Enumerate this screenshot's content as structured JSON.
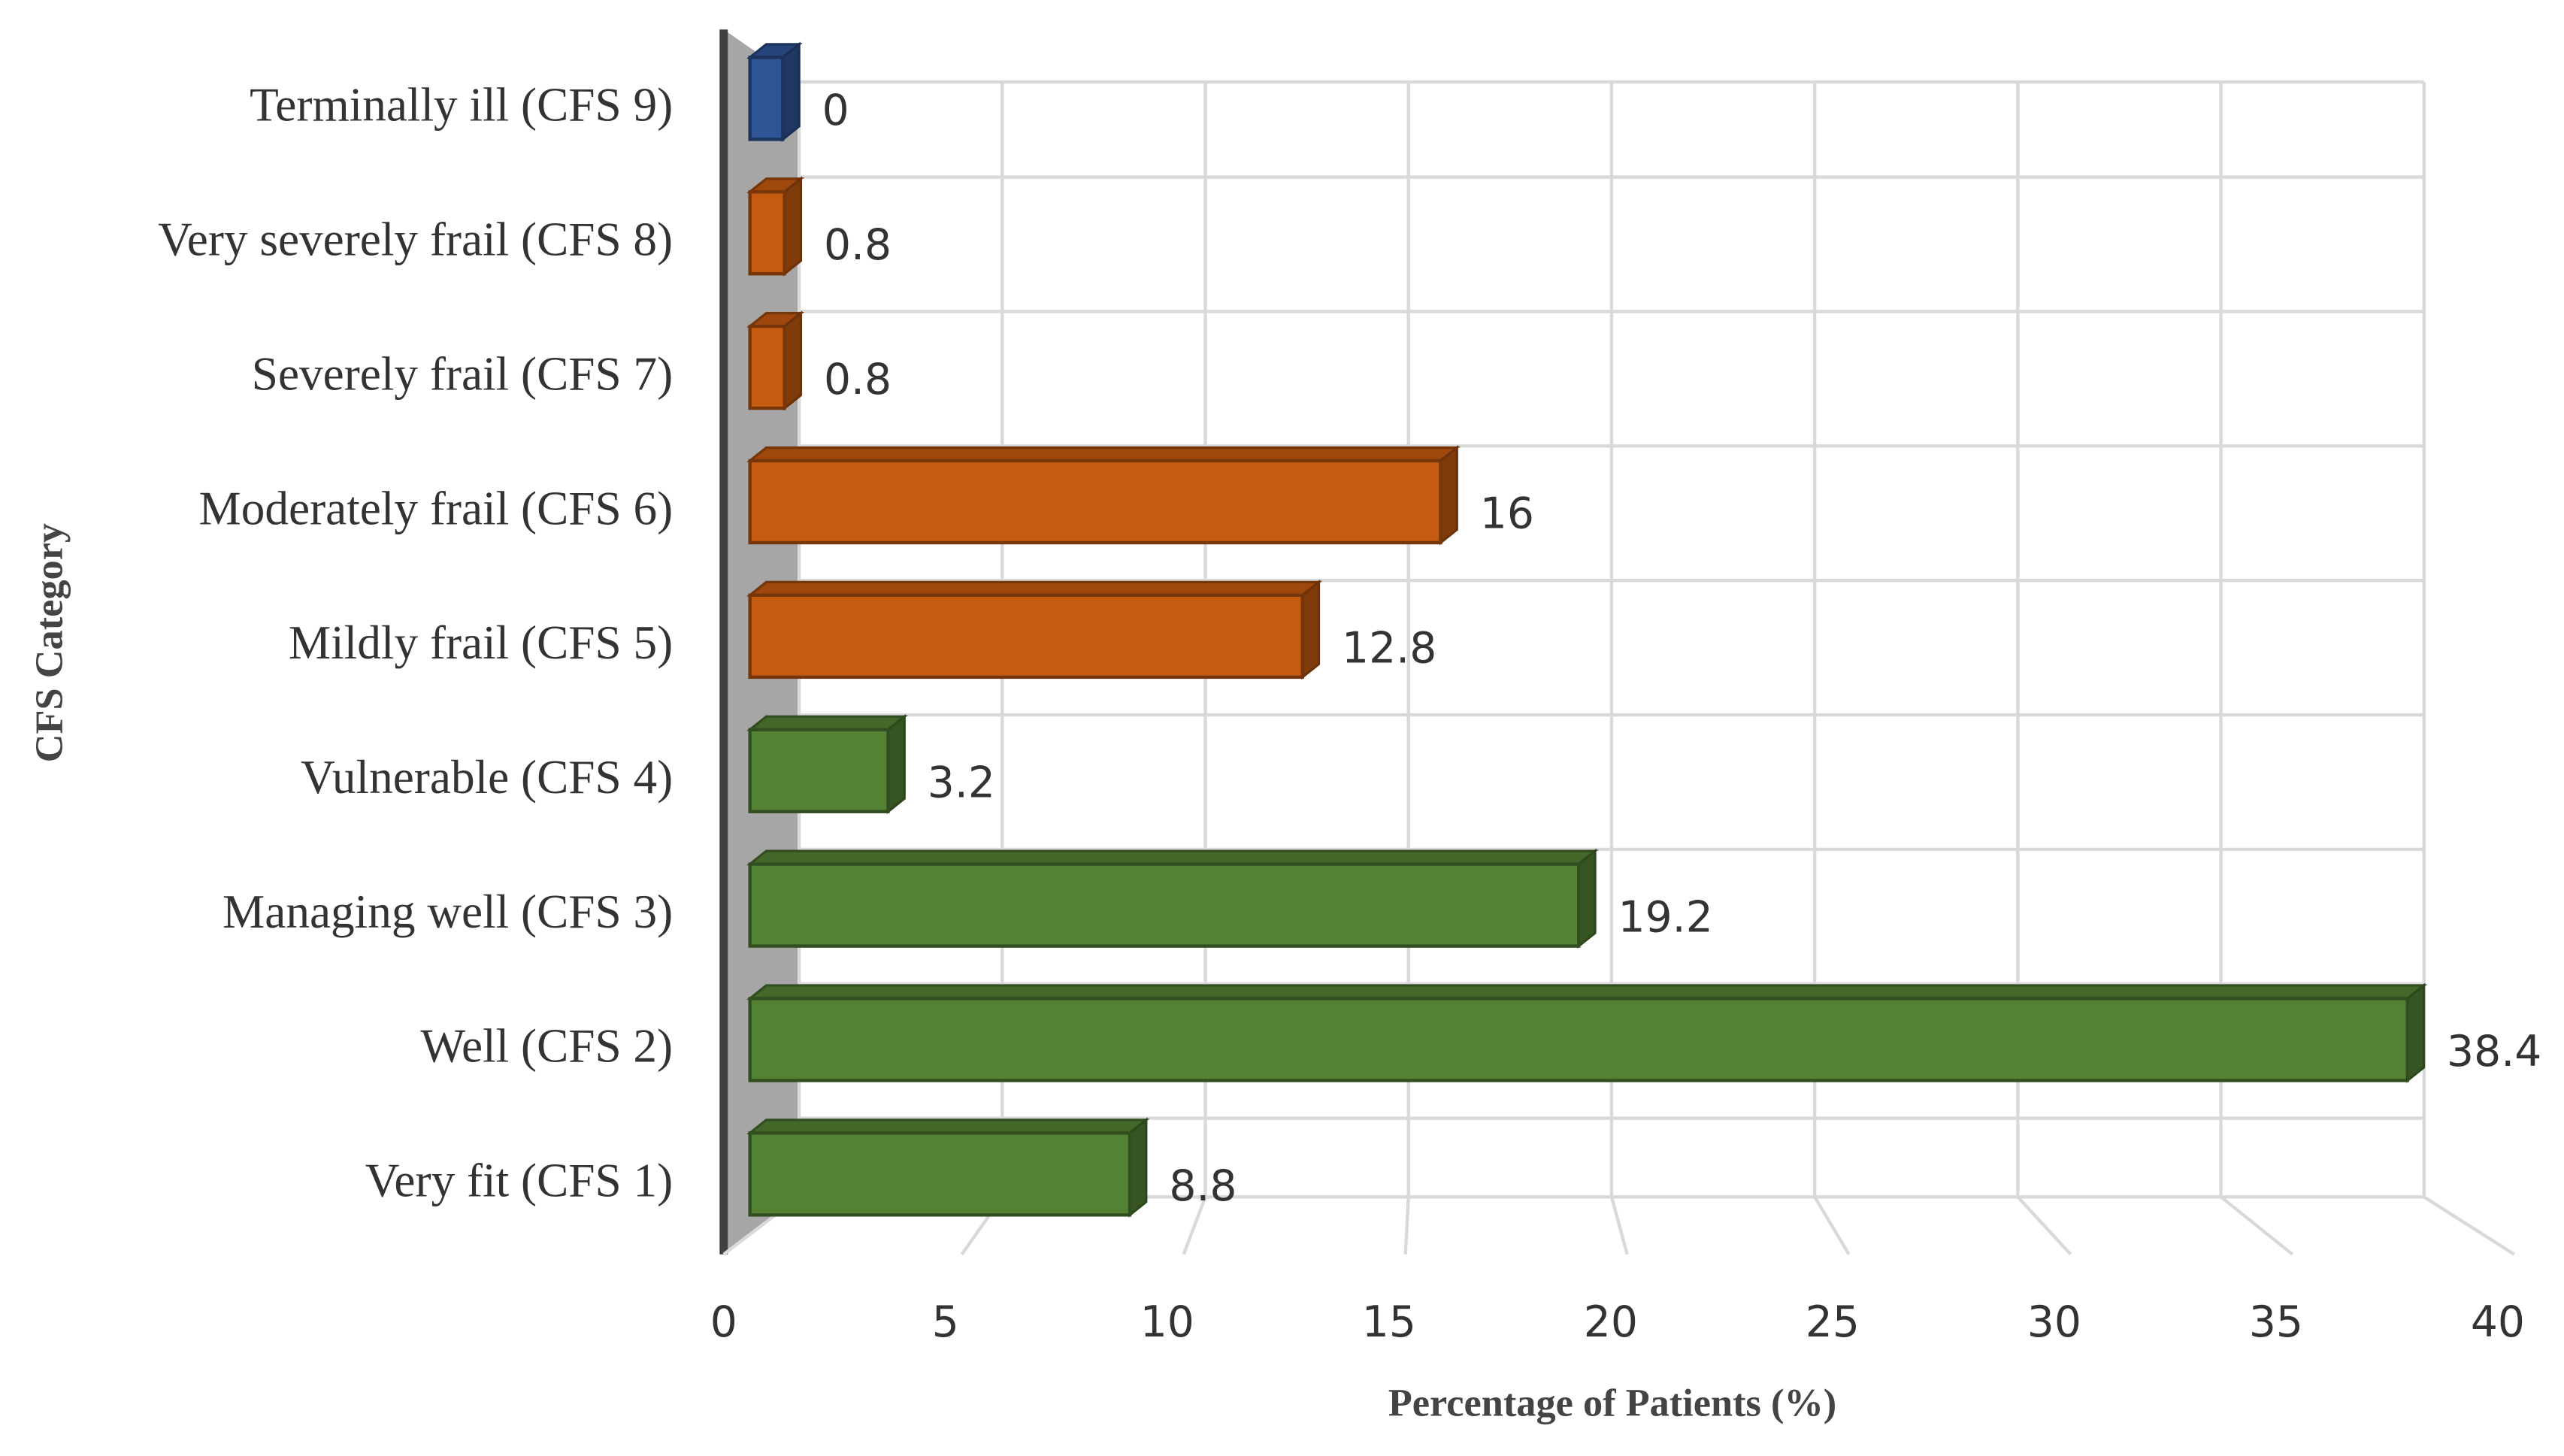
{
  "chart_data": {
    "type": "bar3d",
    "orientation": "horizontal",
    "y_label": "CFS Category",
    "x_label": "Percentage of Patients (%)",
    "categories": [
      "Very fit (CFS 1)",
      "Well (CFS 2)",
      "Managing well (CFS 3)",
      "Vulnerable (CFS 4)",
      "Mildly frail (CFS 5)",
      "Moderately frail (CFS 6)",
      "Severely frail (CFS 7)",
      "Very severely frail (CFS 8)",
      "Terminally ill (CFS 9)"
    ],
    "values": [
      8.8,
      38.4,
      19.2,
      3.2,
      12.8,
      16,
      0.8,
      0.8,
      0
    ],
    "colors": [
      "#548235",
      "#548235",
      "#548235",
      "#548235",
      "#c55a11",
      "#c55a11",
      "#c55a11",
      "#c55a11",
      "#2f5597"
    ],
    "xlim": [
      0,
      40
    ],
    "xticks": [
      0,
      5,
      10,
      15,
      20,
      25,
      30,
      35,
      40
    ],
    "grid": true
  }
}
